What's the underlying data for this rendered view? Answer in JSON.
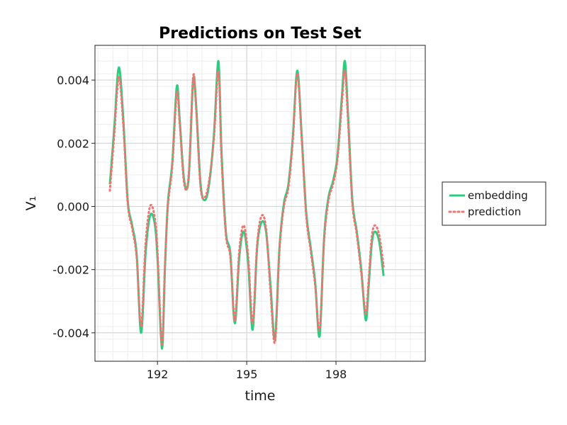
{
  "chart_data": {
    "type": "line",
    "title": "Predictions on Test Set",
    "xlabel": "time",
    "ylabel": "V₁",
    "xlim": [
      189.9,
      201.0
    ],
    "ylim": [
      -0.0049,
      0.0051
    ],
    "xticks": [
      192,
      195,
      198
    ],
    "xtick_labels": [
      "192",
      "195",
      "198"
    ],
    "yticks": [
      -0.004,
      -0.002,
      0.0,
      0.002,
      0.004
    ],
    "ytick_labels": [
      "-0.004",
      "-0.002",
      "0.000",
      "0.002",
      "0.004"
    ],
    "grid": true,
    "legend_position": "right",
    "series": [
      {
        "name": "embedding",
        "color": "#2ecc80",
        "style": "solid",
        "points": [
          [
            190.4,
            0.0007
          ],
          [
            190.55,
            0.0025
          ],
          [
            190.7,
            0.0044
          ],
          [
            190.85,
            0.0028
          ],
          [
            191.0,
            0.0002
          ],
          [
            191.15,
            -0.0006
          ],
          [
            191.3,
            -0.0015
          ],
          [
            191.45,
            -0.004
          ],
          [
            191.6,
            -0.0015
          ],
          [
            191.75,
            -0.0003
          ],
          [
            191.9,
            -0.0005
          ],
          [
            192.0,
            -0.0016
          ],
          [
            192.15,
            -0.0045
          ],
          [
            192.25,
            -0.002
          ],
          [
            192.35,
            0.0001
          ],
          [
            192.5,
            0.0014
          ],
          [
            192.65,
            0.0038
          ],
          [
            192.75,
            0.0027
          ],
          [
            192.9,
            0.0008
          ],
          [
            193.05,
            0.0009
          ],
          [
            193.2,
            0.004
          ],
          [
            193.3,
            0.0032
          ],
          [
            193.45,
            0.0007
          ],
          [
            193.6,
            0.0002
          ],
          [
            193.75,
            0.0008
          ],
          [
            193.9,
            0.0023
          ],
          [
            194.05,
            0.0046
          ],
          [
            194.15,
            0.0018
          ],
          [
            194.3,
            -0.0008
          ],
          [
            194.45,
            -0.0015
          ],
          [
            194.6,
            -0.0037
          ],
          [
            194.75,
            -0.0016
          ],
          [
            194.9,
            -0.0008
          ],
          [
            195.05,
            -0.0018
          ],
          [
            195.2,
            -0.0039
          ],
          [
            195.35,
            -0.0013
          ],
          [
            195.5,
            -0.0005
          ],
          [
            195.65,
            -0.0008
          ],
          [
            195.8,
            -0.0025
          ],
          [
            195.95,
            -0.0042
          ],
          [
            196.1,
            -0.0013
          ],
          [
            196.25,
            0.0001
          ],
          [
            196.4,
            0.0007
          ],
          [
            196.55,
            0.0022
          ],
          [
            196.7,
            0.0043
          ],
          [
            196.85,
            0.0022
          ],
          [
            197.0,
            -0.0002
          ],
          [
            197.15,
            -0.0013
          ],
          [
            197.3,
            -0.0024
          ],
          [
            197.45,
            -0.0041
          ],
          [
            197.6,
            -0.001
          ],
          [
            197.75,
            0.0003
          ],
          [
            197.9,
            0.0008
          ],
          [
            198.05,
            0.0016
          ],
          [
            198.2,
            0.0035
          ],
          [
            198.3,
            0.0046
          ],
          [
            198.4,
            0.003
          ],
          [
            198.55,
            0.0002
          ],
          [
            198.7,
            -0.0008
          ],
          [
            198.85,
            -0.002
          ],
          [
            199.0,
            -0.0036
          ],
          [
            199.1,
            -0.0025
          ],
          [
            199.2,
            -0.0012
          ],
          [
            199.3,
            -0.0008
          ],
          [
            199.45,
            -0.0011
          ],
          [
            199.6,
            -0.0022
          ]
        ]
      },
      {
        "name": "prediction",
        "color": "#f07470",
        "style": "dotted",
        "points": [
          [
            190.4,
            0.0005
          ],
          [
            190.55,
            0.0023
          ],
          [
            190.7,
            0.0041
          ],
          [
            190.85,
            0.0026
          ],
          [
            191.0,
            0.0001
          ],
          [
            191.15,
            -0.0007
          ],
          [
            191.3,
            -0.0016
          ],
          [
            191.45,
            -0.0038
          ],
          [
            191.6,
            -0.0012
          ],
          [
            191.75,
            0.0
          ],
          [
            191.9,
            -0.0003
          ],
          [
            192.0,
            -0.0014
          ],
          [
            192.15,
            -0.0044
          ],
          [
            192.25,
            -0.0019
          ],
          [
            192.35,
            0.0
          ],
          [
            192.5,
            0.0013
          ],
          [
            192.65,
            0.0036
          ],
          [
            192.75,
            0.0026
          ],
          [
            192.9,
            0.0007
          ],
          [
            193.05,
            0.001
          ],
          [
            193.2,
            0.0041
          ],
          [
            193.3,
            0.0031
          ],
          [
            193.45,
            0.0006
          ],
          [
            193.6,
            0.0003
          ],
          [
            193.75,
            0.0009
          ],
          [
            193.9,
            0.0022
          ],
          [
            194.05,
            0.0043
          ],
          [
            194.15,
            0.0016
          ],
          [
            194.3,
            -0.0009
          ],
          [
            194.45,
            -0.0016
          ],
          [
            194.6,
            -0.0036
          ],
          [
            194.75,
            -0.0014
          ],
          [
            194.9,
            -0.0006
          ],
          [
            195.05,
            -0.0016
          ],
          [
            195.2,
            -0.0037
          ],
          [
            195.35,
            -0.0012
          ],
          [
            195.5,
            -0.0003
          ],
          [
            195.65,
            -0.0007
          ],
          [
            195.8,
            -0.0027
          ],
          [
            195.95,
            -0.0043
          ],
          [
            196.1,
            -0.0014
          ],
          [
            196.25,
            0.0
          ],
          [
            196.4,
            0.0006
          ],
          [
            196.55,
            0.0021
          ],
          [
            196.7,
            0.0042
          ],
          [
            196.85,
            0.0021
          ],
          [
            197.0,
            -0.0003
          ],
          [
            197.15,
            -0.0014
          ],
          [
            197.3,
            -0.0025
          ],
          [
            197.45,
            -0.0039
          ],
          [
            197.6,
            -0.0011
          ],
          [
            197.75,
            0.0002
          ],
          [
            197.9,
            0.0007
          ],
          [
            198.05,
            0.0015
          ],
          [
            198.2,
            0.0033
          ],
          [
            198.3,
            0.0043
          ],
          [
            198.4,
            0.0028
          ],
          [
            198.55,
            0.0001
          ],
          [
            198.7,
            -0.0009
          ],
          [
            198.85,
            -0.0021
          ],
          [
            199.0,
            -0.0034
          ],
          [
            199.1,
            -0.0023
          ],
          [
            199.2,
            -0.001
          ],
          [
            199.3,
            -0.0006
          ],
          [
            199.45,
            -0.0009
          ],
          [
            199.6,
            -0.0019
          ]
        ]
      }
    ]
  }
}
